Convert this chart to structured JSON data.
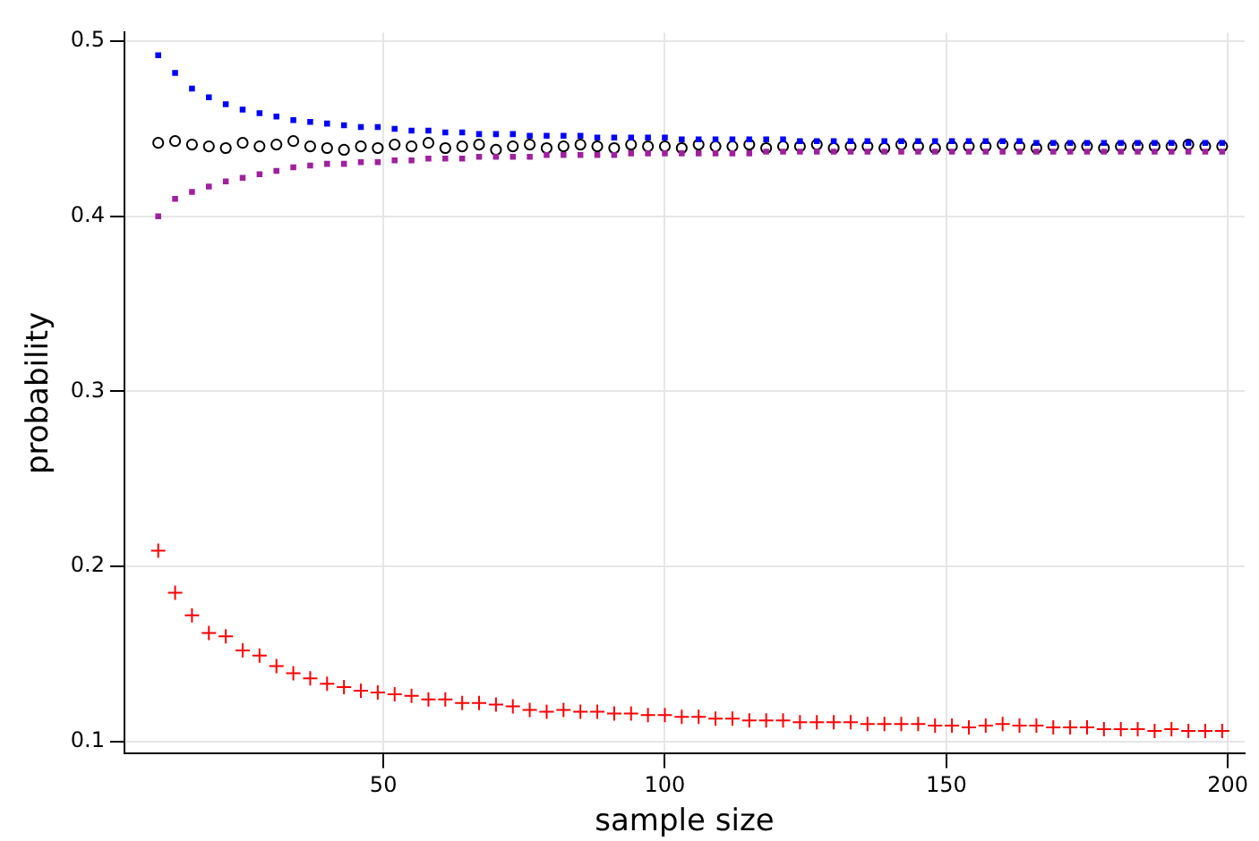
{
  "chart_data": {
    "type": "scatter",
    "xlabel": "sample size",
    "ylabel": "probability",
    "x": [
      10,
      13,
      16,
      19,
      22,
      25,
      28,
      31,
      34,
      37,
      40,
      43,
      46,
      49,
      52,
      55,
      58,
      61,
      64,
      67,
      70,
      73,
      76,
      79,
      82,
      85,
      88,
      91,
      94,
      97,
      100,
      103,
      106,
      109,
      112,
      115,
      118,
      121,
      124,
      127,
      130,
      133,
      136,
      139,
      142,
      145,
      148,
      151,
      154,
      157,
      160,
      163,
      166,
      169,
      172,
      175,
      178,
      181,
      184,
      187,
      190,
      193,
      196,
      199
    ],
    "series": [
      {
        "color": "#0000ff",
        "marker": "square",
        "values": [
          0.492,
          0.482,
          0.473,
          0.468,
          0.464,
          0.461,
          0.459,
          0.457,
          0.455,
          0.454,
          0.453,
          0.452,
          0.451,
          0.451,
          0.45,
          0.449,
          0.449,
          0.448,
          0.448,
          0.447,
          0.447,
          0.447,
          0.446,
          0.446,
          0.446,
          0.446,
          0.445,
          0.445,
          0.445,
          0.445,
          0.445,
          0.444,
          0.444,
          0.444,
          0.444,
          0.444,
          0.444,
          0.444,
          0.443,
          0.443,
          0.443,
          0.443,
          0.443,
          0.443,
          0.443,
          0.443,
          0.443,
          0.443,
          0.443,
          0.443,
          0.443,
          0.443,
          0.442,
          0.442,
          0.442,
          0.442,
          0.442,
          0.442,
          0.442,
          0.442,
          0.442,
          0.442,
          0.442,
          0.442
        ]
      },
      {
        "color": "#a020a0",
        "marker": "square",
        "values": [
          0.4,
          0.41,
          0.414,
          0.417,
          0.42,
          0.422,
          0.424,
          0.426,
          0.428,
          0.429,
          0.43,
          0.43,
          0.431,
          0.431,
          0.432,
          0.432,
          0.433,
          0.433,
          0.433,
          0.434,
          0.434,
          0.434,
          0.434,
          0.435,
          0.435,
          0.435,
          0.435,
          0.435,
          0.436,
          0.436,
          0.436,
          0.436,
          0.436,
          0.436,
          0.436,
          0.436,
          0.437,
          0.437,
          0.437,
          0.437,
          0.437,
          0.437,
          0.437,
          0.437,
          0.437,
          0.437,
          0.437,
          0.437,
          0.437,
          0.437,
          0.437,
          0.437,
          0.437,
          0.437,
          0.437,
          0.437,
          0.437,
          0.437,
          0.437,
          0.437,
          0.437,
          0.437,
          0.437,
          0.437
        ]
      },
      {
        "color": "#000000",
        "marker": "circle",
        "values": [
          0.442,
          0.443,
          0.441,
          0.44,
          0.439,
          0.442,
          0.44,
          0.441,
          0.443,
          0.44,
          0.439,
          0.438,
          0.44,
          0.439,
          0.441,
          0.44,
          0.442,
          0.439,
          0.44,
          0.441,
          0.438,
          0.44,
          0.441,
          0.439,
          0.44,
          0.441,
          0.44,
          0.439,
          0.441,
          0.44,
          0.44,
          0.439,
          0.441,
          0.44,
          0.44,
          0.441,
          0.439,
          0.44,
          0.44,
          0.441,
          0.439,
          0.44,
          0.44,
          0.439,
          0.441,
          0.44,
          0.439,
          0.44,
          0.44,
          0.44,
          0.441,
          0.44,
          0.439,
          0.44,
          0.44,
          0.44,
          0.439,
          0.44,
          0.44,
          0.44,
          0.44,
          0.441,
          0.44,
          0.44
        ]
      },
      {
        "color": "#ff0000",
        "marker": "cross",
        "values": [
          0.209,
          0.185,
          0.172,
          0.162,
          0.16,
          0.152,
          0.149,
          0.143,
          0.139,
          0.136,
          0.133,
          0.131,
          0.129,
          0.128,
          0.127,
          0.126,
          0.124,
          0.124,
          0.122,
          0.122,
          0.121,
          0.12,
          0.118,
          0.117,
          0.118,
          0.117,
          0.117,
          0.116,
          0.116,
          0.115,
          0.115,
          0.114,
          0.114,
          0.113,
          0.113,
          0.112,
          0.112,
          0.112,
          0.111,
          0.111,
          0.111,
          0.111,
          0.11,
          0.11,
          0.11,
          0.11,
          0.109,
          0.109,
          0.108,
          0.109,
          0.11,
          0.109,
          0.109,
          0.108,
          0.108,
          0.108,
          0.107,
          0.107,
          0.107,
          0.106,
          0.107,
          0.106,
          0.106,
          0.106
        ]
      }
    ],
    "xlim": [
      4,
      203
    ],
    "xticks": [
      50,
      100,
      150,
      200
    ],
    "ylim": [
      0.093,
      0.505
    ],
    "yticks": [
      0.1,
      0.2,
      0.3,
      0.4,
      0.5
    ],
    "grid": true,
    "legend": false
  }
}
